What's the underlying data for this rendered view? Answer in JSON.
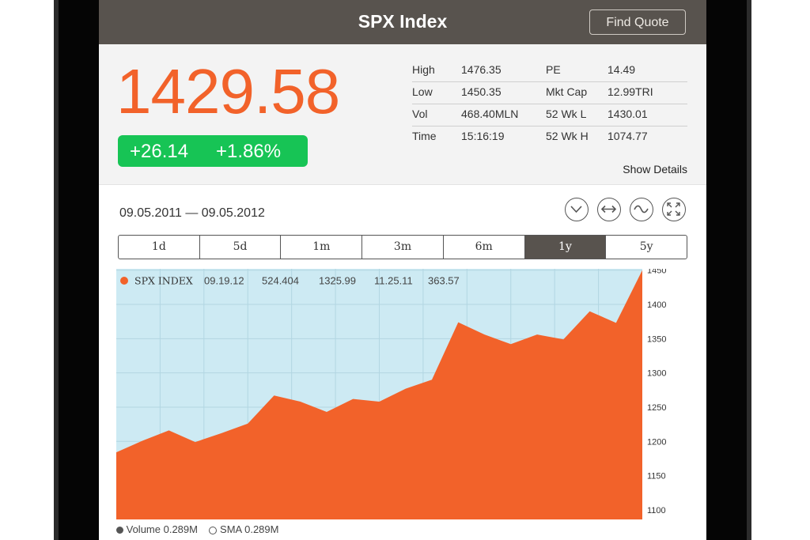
{
  "header": {
    "title": "SPX Index",
    "find_quote_label": "Find Quote"
  },
  "quote": {
    "price": "1429.58",
    "change": "+26.14",
    "change_pct": "+1.86%",
    "show_details_label": "Show Details",
    "stats": [
      {
        "label1": "High",
        "value1": "1476.35",
        "label2": "PE",
        "value2": "14.49"
      },
      {
        "label1": "Low",
        "value1": "1450.35",
        "label2": "Mkt Cap",
        "value2": "12.99TRI"
      },
      {
        "label1": "Vol",
        "value1": "468.40MLN",
        "label2": "52 Wk L",
        "value2": "1430.01"
      },
      {
        "label1": "Time",
        "value1": "15:16:19",
        "label2": "52 Wk H",
        "value2": "1074.77"
      }
    ]
  },
  "date_range": "09.05.2011 — 09.05.2012",
  "tools": [
    "chevron-down-icon",
    "horizontal-arrows-icon",
    "wave-icon",
    "expand-icon"
  ],
  "ranges": [
    {
      "label": "1d"
    },
    {
      "label": "5d"
    },
    {
      "label": "1m"
    },
    {
      "label": "3m"
    },
    {
      "label": "6m"
    },
    {
      "label": "1y"
    },
    {
      "label": "5y"
    }
  ],
  "active_range": "1y",
  "chart_legend": {
    "series_name": "SPX INDEX",
    "d1": "09.19.12",
    "v1": "524.404",
    "v2": "1325.99",
    "d2": "11.25.11",
    "v3": "363.57"
  },
  "chart_footer": {
    "volume": "Volume 0.289M",
    "sma": "SMA 0.289M"
  },
  "colors": {
    "accent": "#f2622a",
    "positive": "#17c455",
    "chart_bg": "#cdeaf3",
    "header_bg": "#58534e"
  },
  "chart_data": {
    "type": "area",
    "ylim": [
      1086,
      1452
    ],
    "yticks": [
      1100,
      1150,
      1200,
      1250,
      1300,
      1350,
      1400,
      1450
    ],
    "series": [
      {
        "name": "SPX INDEX",
        "values": [
          1184,
          1201,
          1216,
          1199,
          1212,
          1226,
          1267,
          1258,
          1243,
          1262,
          1258,
          1277,
          1290,
          1374,
          1356,
          1342,
          1356,
          1349,
          1390,
          1373,
          1450
        ]
      }
    ]
  }
}
